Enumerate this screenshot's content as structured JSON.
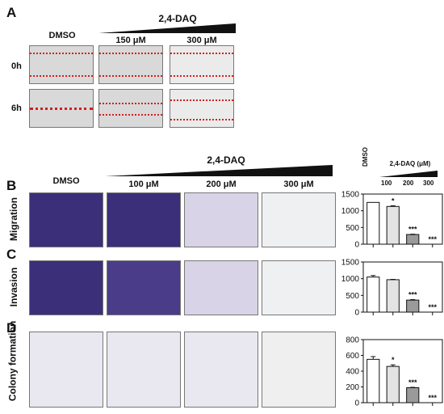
{
  "panelA": {
    "letter": "A",
    "treatment": "2,4-DAQ",
    "col_labels": [
      "DMSO",
      "150 μM",
      "300 μM"
    ],
    "row_labels": [
      "0h",
      "6h"
    ]
  },
  "panelBCD": {
    "treatment": "2,4-DAQ",
    "col_labels": [
      "DMSO",
      "100 μM",
      "200 μM",
      "300 μM"
    ],
    "rows": [
      {
        "letter": "B",
        "label": "Migration"
      },
      {
        "letter": "C",
        "label": "Invasion"
      },
      {
        "letter": "D",
        "label": "Colony formation"
      }
    ]
  },
  "bar_header": {
    "title": "2,4-DAQ (μM)",
    "dmso": "DMSO",
    "doses": [
      "100",
      "200",
      "300"
    ]
  },
  "chart_data": [
    {
      "type": "bar",
      "panel": "B",
      "categories": [
        "DMSO",
        "100",
        "200",
        "300"
      ],
      "values": [
        1250,
        1130,
        290,
        0
      ],
      "errors": [
        0,
        20,
        10,
        0
      ],
      "significance": [
        "",
        "*",
        "***",
        "***"
      ],
      "ylim": [
        0,
        1500
      ],
      "yticks": [
        0,
        500,
        1000,
        1500
      ],
      "bar_colors": [
        "#ffffff",
        "#e3e3e3",
        "#9a9a9a",
        "#555555"
      ]
    },
    {
      "type": "bar",
      "panel": "C",
      "categories": [
        "DMSO",
        "100",
        "200",
        "300"
      ],
      "values": [
        1050,
        970,
        360,
        0
      ],
      "errors": [
        45,
        10,
        15,
        0
      ],
      "significance": [
        "",
        "",
        "***",
        "***"
      ],
      "ylim": [
        0,
        1500
      ],
      "yticks": [
        0,
        500,
        1000,
        1500
      ],
      "bar_colors": [
        "#ffffff",
        "#e3e3e3",
        "#9a9a9a",
        "#555555"
      ]
    },
    {
      "type": "bar",
      "panel": "D",
      "categories": [
        "DMSO",
        "100",
        "200",
        "300"
      ],
      "values": [
        550,
        460,
        190,
        0
      ],
      "errors": [
        35,
        20,
        5,
        0
      ],
      "significance": [
        "",
        "*",
        "***",
        "***"
      ],
      "ylim": [
        0,
        800
      ],
      "yticks": [
        0,
        200,
        400,
        600,
        800
      ],
      "bar_colors": [
        "#ffffff",
        "#e3e3e3",
        "#9a9a9a",
        "#555555"
      ]
    }
  ]
}
